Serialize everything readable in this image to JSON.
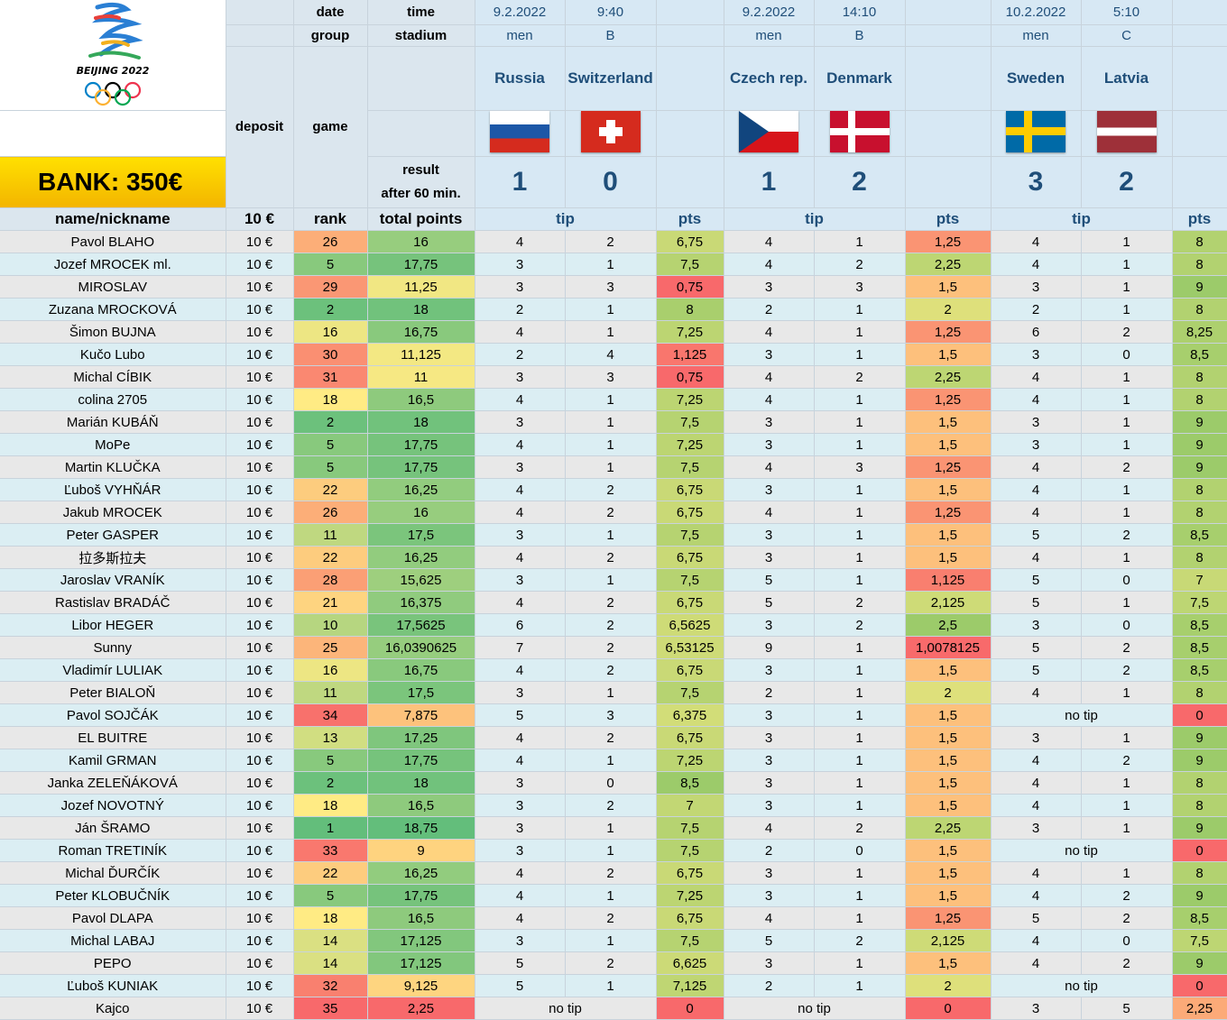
{
  "logo": {
    "text": "BEIJING 2022"
  },
  "bank": "BANK: 350€",
  "header": {
    "date": "date",
    "time": "time",
    "group": "group",
    "stadium": "stadium",
    "deposit": "deposit",
    "game": "game",
    "result": "result",
    "result2": "after 60 min.",
    "name_col": "name/nickname",
    "deposit_val": "10 €",
    "rank": "rank",
    "total": "total points",
    "tip": "tip",
    "pts": "pts"
  },
  "games": [
    {
      "date": "9.2.2022",
      "time": "9:40",
      "group": "men",
      "stadium": "B",
      "home": "Russia",
      "away": "Switzerland",
      "home_score": "1",
      "away_score": "0"
    },
    {
      "date": "9.2.2022",
      "time": "14:10",
      "group": "men",
      "stadium": "B",
      "home": "Czech rep.",
      "away": "Denmark",
      "home_score": "1",
      "away_score": "2"
    },
    {
      "date": "10.2.2022",
      "time": "5:10",
      "group": "men",
      "stadium": "C",
      "home": "Sweden",
      "away": "Latvia",
      "home_score": "3",
      "away_score": "2"
    }
  ],
  "rows": [
    {
      "name": "Pavol BLAHO",
      "dep": "10 €",
      "rank": "26",
      "total": "16",
      "g": [
        [
          "4",
          "2",
          "6,75"
        ],
        [
          "4",
          "1",
          "1,25"
        ],
        [
          "4",
          "1",
          "8"
        ]
      ]
    },
    {
      "name": "Jozef MROCEK ml.",
      "dep": "10 €",
      "rank": "5",
      "total": "17,75",
      "g": [
        [
          "3",
          "1",
          "7,5"
        ],
        [
          "4",
          "2",
          "2,25"
        ],
        [
          "4",
          "1",
          "8"
        ]
      ]
    },
    {
      "name": "MIROSLAV",
      "dep": "10 €",
      "rank": "29",
      "total": "11,25",
      "g": [
        [
          "3",
          "3",
          "0,75"
        ],
        [
          "3",
          "3",
          "1,5"
        ],
        [
          "3",
          "1",
          "9"
        ]
      ]
    },
    {
      "name": "Zuzana MROCKOVÁ",
      "dep": "10 €",
      "rank": "2",
      "total": "18",
      "g": [
        [
          "2",
          "1",
          "8"
        ],
        [
          "2",
          "1",
          "2"
        ],
        [
          "2",
          "1",
          "8"
        ]
      ]
    },
    {
      "name": "Šimon BUJNA",
      "dep": "10 €",
      "rank": "16",
      "total": "16,75",
      "g": [
        [
          "4",
          "1",
          "7,25"
        ],
        [
          "4",
          "1",
          "1,25"
        ],
        [
          "6",
          "2",
          "8,25"
        ]
      ]
    },
    {
      "name": "Kučo Lubo",
      "dep": "10 €",
      "rank": "30",
      "total": "11,125",
      "g": [
        [
          "2",
          "4",
          "1,125"
        ],
        [
          "3",
          "1",
          "1,5"
        ],
        [
          "3",
          "0",
          "8,5"
        ]
      ]
    },
    {
      "name": "Michal CÍBIK",
      "dep": "10 €",
      "rank": "31",
      "total": "11",
      "g": [
        [
          "3",
          "3",
          "0,75"
        ],
        [
          "4",
          "2",
          "2,25"
        ],
        [
          "4",
          "1",
          "8"
        ]
      ]
    },
    {
      "name": "colina 2705",
      "dep": "10 €",
      "rank": "18",
      "total": "16,5",
      "g": [
        [
          "4",
          "1",
          "7,25"
        ],
        [
          "4",
          "1",
          "1,25"
        ],
        [
          "4",
          "1",
          "8"
        ]
      ]
    },
    {
      "name": "Marián KUBÁŇ",
      "dep": "10 €",
      "rank": "2",
      "total": "18",
      "g": [
        [
          "3",
          "1",
          "7,5"
        ],
        [
          "3",
          "1",
          "1,5"
        ],
        [
          "3",
          "1",
          "9"
        ]
      ]
    },
    {
      "name": "MoPe",
      "dep": "10 €",
      "rank": "5",
      "total": "17,75",
      "g": [
        [
          "4",
          "1",
          "7,25"
        ],
        [
          "3",
          "1",
          "1,5"
        ],
        [
          "3",
          "1",
          "9"
        ]
      ]
    },
    {
      "name": "Martin KLUČKA",
      "dep": "10 €",
      "rank": "5",
      "total": "17,75",
      "g": [
        [
          "3",
          "1",
          "7,5"
        ],
        [
          "4",
          "3",
          "1,25"
        ],
        [
          "4",
          "2",
          "9"
        ]
      ]
    },
    {
      "name": "Ľuboš VYHŇÁR",
      "dep": "10 €",
      "rank": "22",
      "total": "16,25",
      "g": [
        [
          "4",
          "2",
          "6,75"
        ],
        [
          "3",
          "1",
          "1,5"
        ],
        [
          "4",
          "1",
          "8"
        ]
      ]
    },
    {
      "name": "Jakub MROCEK",
      "dep": "10 €",
      "rank": "26",
      "total": "16",
      "g": [
        [
          "4",
          "2",
          "6,75"
        ],
        [
          "4",
          "1",
          "1,25"
        ],
        [
          "4",
          "1",
          "8"
        ]
      ]
    },
    {
      "name": "Peter GASPER",
      "dep": "10 €",
      "rank": "11",
      "total": "17,5",
      "g": [
        [
          "3",
          "1",
          "7,5"
        ],
        [
          "3",
          "1",
          "1,5"
        ],
        [
          "5",
          "2",
          "8,5"
        ]
      ]
    },
    {
      "name": "拉多斯拉夫",
      "dep": "10 €",
      "rank": "22",
      "total": "16,25",
      "g": [
        [
          "4",
          "2",
          "6,75"
        ],
        [
          "3",
          "1",
          "1,5"
        ],
        [
          "4",
          "1",
          "8"
        ]
      ]
    },
    {
      "name": "Jaroslav VRANÍK",
      "dep": "10 €",
      "rank": "28",
      "total": "15,625",
      "g": [
        [
          "3",
          "1",
          "7,5"
        ],
        [
          "5",
          "1",
          "1,125"
        ],
        [
          "5",
          "0",
          "7"
        ]
      ]
    },
    {
      "name": "Rastislav BRADÁČ",
      "dep": "10 €",
      "rank": "21",
      "total": "16,375",
      "g": [
        [
          "4",
          "2",
          "6,75"
        ],
        [
          "5",
          "2",
          "2,125"
        ],
        [
          "5",
          "1",
          "7,5"
        ]
      ]
    },
    {
      "name": "Libor HEGER",
      "dep": "10 €",
      "rank": "10",
      "total": "17,5625",
      "g": [
        [
          "6",
          "2",
          "6,5625"
        ],
        [
          "3",
          "2",
          "2,5"
        ],
        [
          "3",
          "0",
          "8,5"
        ]
      ]
    },
    {
      "name": "Sunny",
      "dep": "10 €",
      "rank": "25",
      "total": "16,0390625",
      "g": [
        [
          "7",
          "2",
          "6,53125"
        ],
        [
          "9",
          "1",
          "1,0078125"
        ],
        [
          "5",
          "2",
          "8,5"
        ]
      ]
    },
    {
      "name": "Vladimír LULIAK",
      "dep": "10 €",
      "rank": "16",
      "total": "16,75",
      "g": [
        [
          "4",
          "2",
          "6,75"
        ],
        [
          "3",
          "1",
          "1,5"
        ],
        [
          "5",
          "2",
          "8,5"
        ]
      ]
    },
    {
      "name": "Peter BIALOŇ",
      "dep": "10 €",
      "rank": "11",
      "total": "17,5",
      "g": [
        [
          "3",
          "1",
          "7,5"
        ],
        [
          "2",
          "1",
          "2"
        ],
        [
          "4",
          "1",
          "8"
        ]
      ]
    },
    {
      "name": "Pavol SOJČÁK",
      "dep": "10 €",
      "rank": "34",
      "total": "7,875",
      "g": [
        [
          "5",
          "3",
          "6,375"
        ],
        [
          "3",
          "1",
          "1,5"
        ],
        [
          "no tip",
          "",
          "0"
        ]
      ]
    },
    {
      "name": "EL BUITRE",
      "dep": "10 €",
      "rank": "13",
      "total": "17,25",
      "g": [
        [
          "4",
          "2",
          "6,75"
        ],
        [
          "3",
          "1",
          "1,5"
        ],
        [
          "3",
          "1",
          "9"
        ]
      ]
    },
    {
      "name": "Kamil GRMAN",
      "dep": "10 €",
      "rank": "5",
      "total": "17,75",
      "g": [
        [
          "4",
          "1",
          "7,25"
        ],
        [
          "3",
          "1",
          "1,5"
        ],
        [
          "4",
          "2",
          "9"
        ]
      ]
    },
    {
      "name": "Janka ZELEŇÁKOVÁ",
      "dep": "10 €",
      "rank": "2",
      "total": "18",
      "g": [
        [
          "3",
          "0",
          "8,5"
        ],
        [
          "3",
          "1",
          "1,5"
        ],
        [
          "4",
          "1",
          "8"
        ]
      ]
    },
    {
      "name": "Jozef NOVOTNÝ",
      "dep": "10 €",
      "rank": "18",
      "total": "16,5",
      "g": [
        [
          "3",
          "2",
          "7"
        ],
        [
          "3",
          "1",
          "1,5"
        ],
        [
          "4",
          "1",
          "8"
        ]
      ]
    },
    {
      "name": "Ján ŠRAMO",
      "dep": "10 €",
      "rank": "1",
      "total": "18,75",
      "g": [
        [
          "3",
          "1",
          "7,5"
        ],
        [
          "4",
          "2",
          "2,25"
        ],
        [
          "3",
          "1",
          "9"
        ]
      ]
    },
    {
      "name": "Roman TRETINÍK",
      "dep": "10 €",
      "rank": "33",
      "total": "9",
      "g": [
        [
          "3",
          "1",
          "7,5"
        ],
        [
          "2",
          "0",
          "1,5"
        ],
        [
          "no tip",
          "",
          "0"
        ]
      ]
    },
    {
      "name": "Michal ĎURČÍK",
      "dep": "10 €",
      "rank": "22",
      "total": "16,25",
      "g": [
        [
          "4",
          "2",
          "6,75"
        ],
        [
          "3",
          "1",
          "1,5"
        ],
        [
          "4",
          "1",
          "8"
        ]
      ]
    },
    {
      "name": "Peter KLOBUČNÍK",
      "dep": "10 €",
      "rank": "5",
      "total": "17,75",
      "g": [
        [
          "4",
          "1",
          "7,25"
        ],
        [
          "3",
          "1",
          "1,5"
        ],
        [
          "4",
          "2",
          "9"
        ]
      ]
    },
    {
      "name": "Pavol DLAPA",
      "dep": "10 €",
      "rank": "18",
      "total": "16,5",
      "g": [
        [
          "4",
          "2",
          "6,75"
        ],
        [
          "4",
          "1",
          "1,25"
        ],
        [
          "5",
          "2",
          "8,5"
        ]
      ]
    },
    {
      "name": "Michal LABAJ",
      "dep": "10 €",
      "rank": "14",
      "total": "17,125",
      "g": [
        [
          "3",
          "1",
          "7,5"
        ],
        [
          "5",
          "2",
          "2,125"
        ],
        [
          "4",
          "0",
          "7,5"
        ]
      ]
    },
    {
      "name": "PEPO",
      "dep": "10 €",
      "rank": "14",
      "total": "17,125",
      "g": [
        [
          "5",
          "2",
          "6,625"
        ],
        [
          "3",
          "1",
          "1,5"
        ],
        [
          "4",
          "2",
          "9"
        ]
      ]
    },
    {
      "name": "Ľuboš KUNIAK",
      "dep": "10 €",
      "rank": "32",
      "total": "9,125",
      "g": [
        [
          "5",
          "1",
          "7,125"
        ],
        [
          "2",
          "1",
          "2"
        ],
        [
          "no tip",
          "",
          "0"
        ]
      ]
    },
    {
      "name": "Kajco",
      "dep": "10 €",
      "rank": "35",
      "total": "2,25",
      "g": [
        [
          "no tip",
          "",
          "0"
        ],
        [
          "no tip",
          "",
          "0"
        ],
        [
          "3",
          "5",
          "2,25"
        ]
      ]
    }
  ],
  "colors": {
    "rank_scale": [
      "#63be7b",
      "#ffeb84",
      "#f8696b"
    ],
    "pts_high": "#9ccb6a",
    "pts_low": "#f8696b"
  }
}
